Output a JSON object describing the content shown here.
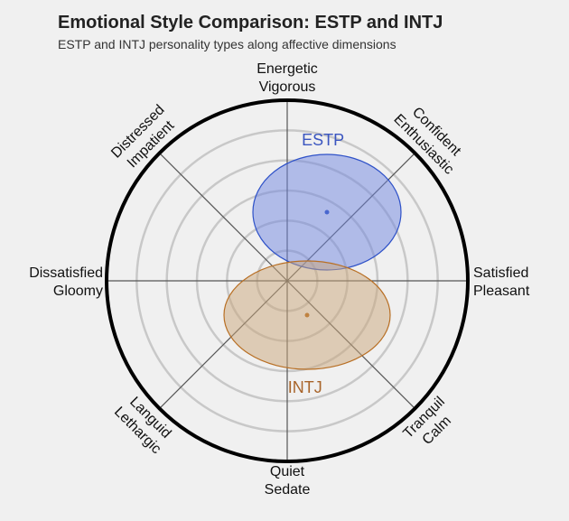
{
  "chart_data": {
    "type": "circumplex",
    "title": "Emotional Style Comparison: ESTP and INTJ",
    "subtitle": "ESTP and INTJ personality types along affective dimensions",
    "axes": [
      {
        "angle": 90,
        "lines": [
          "Energetic",
          "Vigorous"
        ]
      },
      {
        "angle": 45,
        "lines": [
          "Confident",
          "Enthusiastic"
        ]
      },
      {
        "angle": 0,
        "lines": [
          "Satisfied",
          "Pleasant"
        ]
      },
      {
        "angle": -45,
        "lines": [
          "Tranquil",
          "Calm"
        ]
      },
      {
        "angle": -90,
        "lines": [
          "Quiet",
          "Sedate"
        ]
      },
      {
        "angle": -135,
        "lines": [
          "Languid",
          "Lethargic"
        ]
      },
      {
        "angle": 180,
        "lines": [
          "Dissatisfied",
          "Gloomy"
        ]
      },
      {
        "angle": 135,
        "lines": [
          "Distressed",
          "Impatient"
        ]
      }
    ],
    "range": [
      -1,
      1
    ],
    "grid_rings": 5,
    "grid": true,
    "series": [
      {
        "name": "ESTP",
        "x": 0.22,
        "y": 0.38,
        "rx": 0.41,
        "ry": 0.32,
        "fill": "#6f86e0",
        "stroke": "#2f52c8",
        "label_color": "#3a55c0"
      },
      {
        "name": "INTJ",
        "x": 0.11,
        "y": -0.19,
        "rx": 0.46,
        "ry": 0.3,
        "fill": "#c9a57a",
        "stroke": "#b86f24",
        "label_color": "#a8642a"
      }
    ]
  }
}
